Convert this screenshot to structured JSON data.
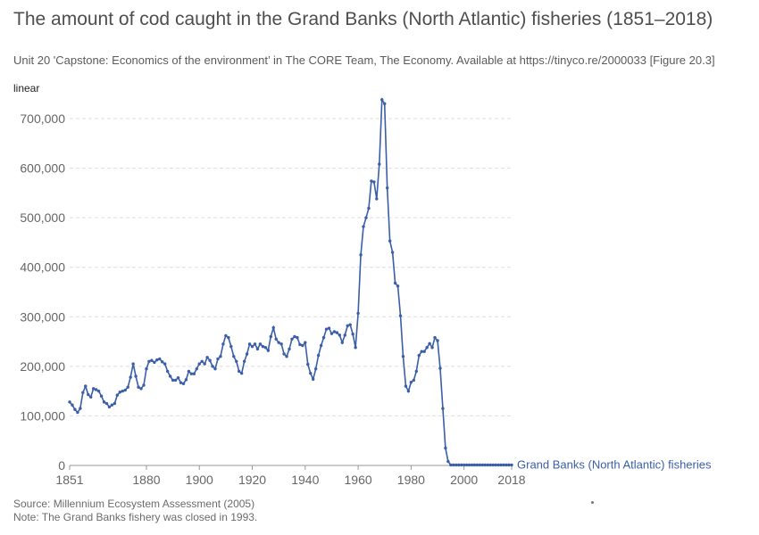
{
  "title": "The amount of cod caught in the Grand Banks (North Atlantic) fisheries (1851–2018)",
  "subtitle": "Unit 20 'Capstone: Economics of the environment’ in The CORE Team, The Economy. Available at https://tinyco.re/2000033 [Figure 20.3]",
  "scale_label": "linear",
  "source": "Source: Millennium Ecosystem Assessment (2005)",
  "note": "Note: The Grand Banks fishery was closed in 1993.",
  "colors": {
    "series": "#3a5ea8",
    "grid": "#dddddd",
    "axis": "#999999"
  },
  "chart_data": {
    "type": "line",
    "xlabel": "",
    "ylabel": "",
    "xlim": [
      1851,
      2018
    ],
    "ylim": [
      0,
      740000
    ],
    "grid": "horizontal dashed",
    "legend": "end-of-line label",
    "y_ticks": [
      {
        "value": 0,
        "label": "0"
      },
      {
        "value": 100000,
        "label": "100,000"
      },
      {
        "value": 200000,
        "label": "200,000"
      },
      {
        "value": 300000,
        "label": "300,000"
      },
      {
        "value": 400000,
        "label": "400,000"
      },
      {
        "value": 500000,
        "label": "500,000"
      },
      {
        "value": 600000,
        "label": "600,000"
      },
      {
        "value": 700000,
        "label": "700,000"
      }
    ],
    "x_ticks": [
      {
        "value": 1851,
        "label": "1851"
      },
      {
        "value": 1880,
        "label": "1880"
      },
      {
        "value": 1900,
        "label": "1900"
      },
      {
        "value": 1920,
        "label": "1920"
      },
      {
        "value": 1940,
        "label": "1940"
      },
      {
        "value": 1960,
        "label": "1960"
      },
      {
        "value": 1980,
        "label": "1980"
      },
      {
        "value": 2000,
        "label": "2000"
      },
      {
        "value": 2018,
        "label": "2018"
      }
    ],
    "series": [
      {
        "name": "Grand Banks (North Atlantic) fisheries",
        "x": [
          1851,
          1852,
          1853,
          1854,
          1855,
          1856,
          1857,
          1858,
          1859,
          1860,
          1861,
          1862,
          1863,
          1864,
          1865,
          1866,
          1867,
          1868,
          1869,
          1870,
          1871,
          1872,
          1873,
          1874,
          1875,
          1876,
          1877,
          1878,
          1879,
          1880,
          1881,
          1882,
          1883,
          1884,
          1885,
          1886,
          1887,
          1888,
          1889,
          1890,
          1891,
          1892,
          1893,
          1894,
          1895,
          1896,
          1897,
          1898,
          1899,
          1900,
          1901,
          1902,
          1903,
          1904,
          1905,
          1906,
          1907,
          1908,
          1909,
          1910,
          1911,
          1912,
          1913,
          1914,
          1915,
          1916,
          1917,
          1918,
          1919,
          1920,
          1921,
          1922,
          1923,
          1924,
          1925,
          1926,
          1927,
          1928,
          1929,
          1930,
          1931,
          1932,
          1933,
          1934,
          1935,
          1936,
          1937,
          1938,
          1939,
          1940,
          1941,
          1942,
          1943,
          1944,
          1945,
          1946,
          1947,
          1948,
          1949,
          1950,
          1951,
          1952,
          1953,
          1954,
          1955,
          1956,
          1957,
          1958,
          1959,
          1960,
          1961,
          1962,
          1963,
          1964,
          1965,
          1966,
          1967,
          1968,
          1969,
          1970,
          1971,
          1972,
          1973,
          1974,
          1975,
          1976,
          1977,
          1978,
          1979,
          1980,
          1981,
          1982,
          1983,
          1984,
          1985,
          1986,
          1987,
          1988,
          1989,
          1990,
          1991,
          1992,
          1993,
          1994,
          1995,
          1996,
          1997,
          1998,
          1999,
          2000,
          2001,
          2002,
          2003,
          2004,
          2005,
          2006,
          2007,
          2008,
          2009,
          2010,
          2011,
          2012,
          2013,
          2014,
          2015,
          2016,
          2017,
          2018
        ],
        "values": [
          128000,
          122000,
          113000,
          107000,
          115000,
          147000,
          160000,
          143000,
          138000,
          155000,
          153000,
          150000,
          140000,
          128000,
          125000,
          118000,
          122000,
          125000,
          142000,
          148000,
          150000,
          152000,
          158000,
          178000,
          205000,
          180000,
          158000,
          155000,
          162000,
          195000,
          210000,
          212000,
          208000,
          213000,
          215000,
          209000,
          205000,
          190000,
          180000,
          172000,
          172000,
          177000,
          167000,
          165000,
          173000,
          190000,
          185000,
          185000,
          195000,
          205000,
          210000,
          205000,
          218000,
          212000,
          200000,
          195000,
          215000,
          220000,
          245000,
          262000,
          258000,
          240000,
          220000,
          210000,
          190000,
          186000,
          210000,
          225000,
          245000,
          240000,
          245000,
          235000,
          245000,
          240000,
          238000,
          232000,
          260000,
          278000,
          255000,
          248000,
          245000,
          225000,
          220000,
          235000,
          255000,
          260000,
          258000,
          244000,
          242000,
          248000,
          204000,
          186000,
          174000,
          195000,
          222000,
          242000,
          258000,
          275000,
          277000,
          266000,
          270000,
          268000,
          263000,
          248000,
          263000,
          282000,
          284000,
          265000,
          238000,
          307000,
          425000,
          482000,
          500000,
          519000,
          574000,
          572000,
          538000,
          608000,
          738000,
          730000,
          560000,
          453000,
          430000,
          368000,
          362000,
          302000,
          220000,
          160000,
          150000,
          168000,
          172000,
          190000,
          222000,
          230000,
          230000,
          238000,
          246000,
          238000,
          258000,
          252000,
          196000,
          115000,
          35000,
          8000,
          1000,
          1000,
          1000,
          1000,
          1000,
          1000,
          1000,
          1000,
          1000,
          1000,
          1000,
          1000,
          1000,
          1000,
          1000,
          1000,
          1000,
          1000,
          1000,
          1000,
          1000,
          1000,
          1000,
          1000
        ]
      }
    ]
  }
}
